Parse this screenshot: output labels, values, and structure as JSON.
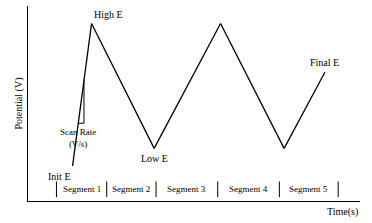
{
  "chart_data": {
    "type": "line",
    "x_label": "Time(s)",
    "y_label": "Potential (V)",
    "x": [
      47,
      67,
      133,
      203,
      270,
      313
    ],
    "values": [
      18,
      91,
      27,
      91,
      27,
      66
    ],
    "point_labels": [
      "Init E",
      "High E",
      "Low E",
      null,
      null,
      "Final E"
    ],
    "annotations": [
      "Scan Rate\n(V/s)"
    ],
    "segments": {
      "labels": [
        "Segment 1",
        "Segment 2",
        "Segment 3",
        "Segment 4",
        "Segment 5"
      ],
      "bounds": [
        30,
        83,
        135,
        200,
        265,
        327
      ]
    },
    "color": "#000000",
    "xlim": [
      0,
      350
    ],
    "ylim": [
      0,
      100
    ],
    "tick_labels": false,
    "grid": false
  }
}
